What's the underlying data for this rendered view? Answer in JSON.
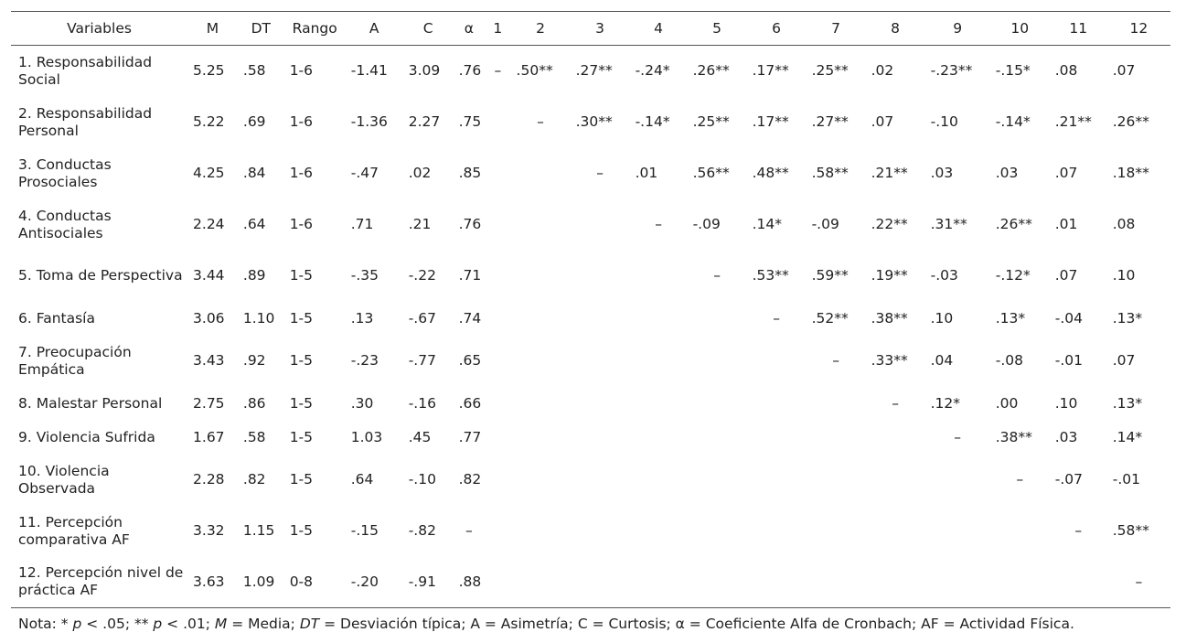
{
  "headers": [
    "Variables",
    "M",
    "DT",
    "Rango",
    "A",
    "C",
    "α",
    "1",
    "2",
    "3",
    "4",
    "5",
    "6",
    "7",
    "8",
    "9",
    "10",
    "11",
    "12"
  ],
  "rows": [
    [
      "1. Responsabilidad Social",
      "5.25",
      ".58",
      "1-6",
      "-1.41",
      "3.09",
      ".76",
      "–",
      ".50**",
      ".27**",
      "-.24*",
      ".26**",
      ".17**",
      ".25**",
      ".02",
      "-.23**",
      "-.15*",
      ".08",
      ".07"
    ],
    [
      "2. Responsabilidad Personal",
      "5.22",
      ".69",
      "1-6",
      "-1.36",
      "2.27",
      ".75",
      "",
      "–",
      ".30**",
      "-.14*",
      ".25**",
      ".17**",
      ".27**",
      ".07",
      "-.10",
      "-.14*",
      ".21**",
      ".26**"
    ],
    [
      "3. Conductas Prosociales",
      "4.25",
      ".84",
      "1-6",
      "-.47",
      ".02",
      ".85",
      "",
      "",
      "–",
      ".01",
      ".56**",
      ".48**",
      ".58**",
      ".21**",
      ".03",
      ".03",
      ".07",
      ".18**"
    ],
    [
      "4. Conductas Antisociales",
      "2.24",
      ".64",
      "1-6",
      ".71",
      ".21",
      ".76",
      "",
      "",
      "",
      "–",
      "-.09",
      ".14*",
      "-.09",
      ".22**",
      ".31**",
      ".26**",
      ".01",
      ".08"
    ],
    [
      "5. Toma de Perspectiva",
      "3.44",
      ".89",
      "1-5",
      "-.35",
      "-.22",
      ".71",
      "",
      "",
      "",
      "",
      "–",
      ".53**",
      ".59**",
      ".19**",
      "-.03",
      "-.12*",
      ".07",
      ".10"
    ],
    [
      "6. Fantasía",
      "3.06",
      "1.10",
      "1-5",
      ".13",
      "-.67",
      ".74",
      "",
      "",
      "",
      "",
      "",
      "–",
      ".52**",
      ".38**",
      ".10",
      ".13*",
      "-.04",
      ".13*"
    ],
    [
      "7. Preocupación Empática",
      "3.43",
      ".92",
      "1-5",
      "-.23",
      "-.77",
      ".65",
      "",
      "",
      "",
      "",
      "",
      "",
      "–",
      ".33**",
      ".04",
      "-.08",
      "-.01",
      ".07"
    ],
    [
      "8. Malestar Personal",
      "2.75",
      ".86",
      "1-5",
      ".30",
      "-.16",
      ".66",
      "",
      "",
      "",
      "",
      "",
      "",
      "",
      "–",
      ".12*",
      ".00",
      ".10",
      ".13*"
    ],
    [
      "9. Violencia Sufrida",
      "1.67",
      ".58",
      "1-5",
      "1.03",
      ".45",
      ".77",
      "",
      "",
      "",
      "",
      "",
      "",
      "",
      "",
      "–",
      ".38**",
      ".03",
      ".14*"
    ],
    [
      "10. Violencia Observada",
      "2.28",
      ".82",
      "1-5",
      ".64",
      "-.10",
      ".82",
      "",
      "",
      "",
      "",
      "",
      "",
      "",
      "",
      "",
      "–",
      "-.07",
      "-.01"
    ],
    [
      "11. Percepción comparativa AF",
      "3.32",
      "1.15",
      "1-5",
      "-.15",
      "-.82",
      "–",
      "",
      "",
      "",
      "",
      "",
      "",
      "",
      "",
      "",
      "",
      "–",
      ".58**"
    ],
    [
      "12. Percepción nivel de práctica AF",
      "3.63",
      "1.09",
      "0-8",
      "-.20",
      "-.91",
      ".88",
      "",
      "",
      "",
      "",
      "",
      "",
      "",
      "",
      "",
      "",
      "",
      "–"
    ]
  ],
  "note": {
    "prefix": "Nota: * ",
    "p1": "p",
    "t1": " < .05; ** ",
    "p2": "p",
    "t2": " < .01; ",
    "m": "M",
    "t3": " = Media; ",
    "dt": "DT",
    "t4": " = Desviación típica; A = Asimetría; C = Curtosis; α = Coeficiente Alfa de Cronbach; AF = Actividad Física."
  }
}
